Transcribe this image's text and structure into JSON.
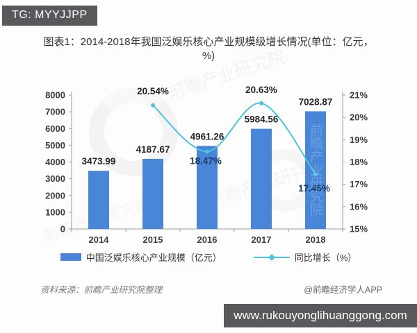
{
  "badge": {
    "text": "TG: MYYJJPP"
  },
  "chart_data": {
    "type": "bar+line",
    "title": "图表1：2014-2018年我国泛娱乐核心产业规模级增长情况(单位：亿元，%)",
    "categories": [
      "2014",
      "2015",
      "2016",
      "2017",
      "2018"
    ],
    "series": [
      {
        "name": "中国泛娱乐核心产业规模（亿元）",
        "type": "bar",
        "axis": "left",
        "color": "#4a86d8",
        "values": [
          3473.99,
          4187.67,
          4961.26,
          5984.56,
          7028.87
        ],
        "labels": [
          "3473.99",
          "4187.67",
          "4961.26",
          "5984.56",
          "7028.87"
        ]
      },
      {
        "name": "同比增长（%）",
        "type": "line",
        "axis": "right",
        "color": "#4dc4dd",
        "values": [
          null,
          20.54,
          18.47,
          20.63,
          17.45
        ],
        "labels": [
          null,
          "20.54%",
          "18.47%",
          "20.63%",
          "17.45%"
        ]
      }
    ],
    "left_axis": {
      "min": 0,
      "max": 8000,
      "step": 1000,
      "tick_labels": [
        "0",
        "1000",
        "2000",
        "3000",
        "4000",
        "5000",
        "6000",
        "7000",
        "8000"
      ]
    },
    "right_axis": {
      "min": 15,
      "max": 21,
      "step": 1,
      "tick_labels": [
        "15%",
        "16%",
        "17%",
        "18%",
        "19%",
        "20%",
        "21%"
      ]
    },
    "grid": false,
    "legend_position": "bottom"
  },
  "source_note": "资料来源：前瞻产业研究院整理",
  "credit": "@前瞻经济学人APP",
  "footer": {
    "url": "www.rukouyonglihuanggong.com"
  },
  "watermark": {
    "text": "前瞻产业研究院"
  },
  "colors": {
    "bar": "#4a86d8",
    "line": "#4dc4dd",
    "badge_bg": "#59595b",
    "footer_bg": "#59595b"
  }
}
